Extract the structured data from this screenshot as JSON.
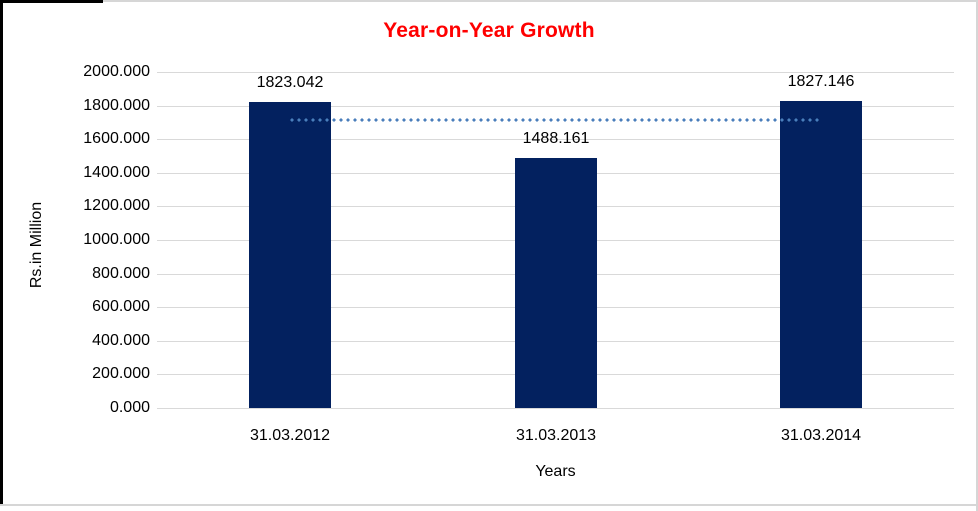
{
  "chart_data": {
    "type": "bar",
    "title": "Year-on-Year Growth",
    "title_color": "#ff0000",
    "xlabel": "Years",
    "ylabel": "Rs.in Million",
    "categories": [
      "31.03.2012",
      "31.03.2013",
      "31.03.2014"
    ],
    "values": [
      1823.042,
      1488.161,
      1827.146
    ],
    "value_labels": [
      "1823.042",
      "1488.161",
      "1827.146"
    ],
    "bar_color": "#03215f",
    "ylim": [
      0,
      2000
    ],
    "ytick_step": 200,
    "ytick_labels": [
      "0.000",
      "200.000",
      "400.000",
      "600.000",
      "800.000",
      "1000.000",
      "1200.000",
      "1400.000",
      "1600.000",
      "1800.000",
      "2000.000"
    ],
    "grid": true,
    "gridline_color": "#d9d9d9",
    "legend": "none",
    "trendline": {
      "style": "dotted",
      "color": "#4a7ebb",
      "approx_value": 1715
    }
  }
}
